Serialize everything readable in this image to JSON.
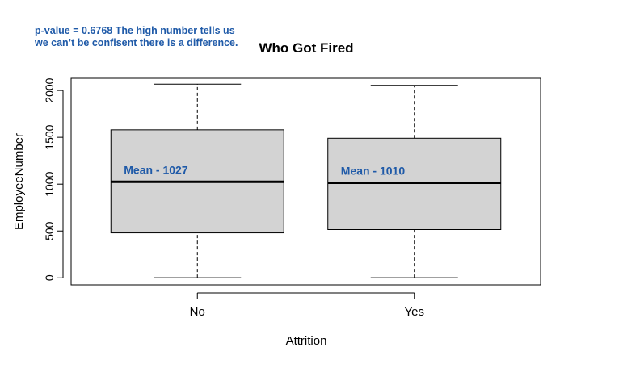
{
  "annotation": {
    "text": "p-value = 0.6768  The high number tells us we can’t be confisent there is a difference."
  },
  "chart_data": {
    "type": "boxplot",
    "title": "Who Got Fired",
    "xlabel": "Attrition",
    "ylabel": "EmployeeNumber",
    "ylim": [
      -75,
      2130
    ],
    "yticks": [
      0,
      500,
      1000,
      1500,
      2000
    ],
    "categories": [
      "No",
      "Yes"
    ],
    "boxes": [
      {
        "category": "No",
        "min": 1,
        "q1": 480,
        "median": 1025,
        "q3": 1580,
        "max": 2068,
        "mean_label": "Mean - 1027"
      },
      {
        "category": "Yes",
        "min": 1,
        "q1": 515,
        "median": 1015,
        "q3": 1490,
        "max": 2055,
        "mean_label": "Mean - 1010"
      }
    ],
    "colors": {
      "box_fill": "#d3d3d3",
      "mean_label": "#1f5aa8",
      "stroke": "#000000"
    }
  }
}
